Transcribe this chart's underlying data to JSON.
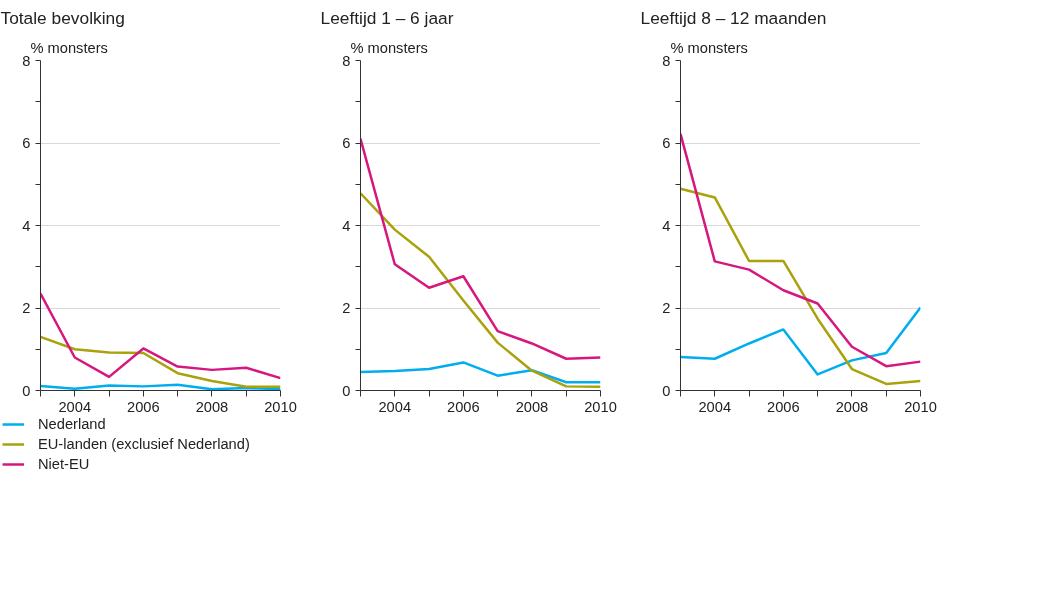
{
  "chart_data": [
    {
      "type": "line",
      "title": "Totale bevolking",
      "ylabel": "% monsters",
      "x": [
        2003,
        2004,
        2005,
        2006,
        2007,
        2008,
        2009,
        2010
      ],
      "xlim": [
        2003,
        2010
      ],
      "xticks": [
        {
          "value": 2003,
          "label": null
        },
        2004,
        {
          "value": 2005,
          "label": null
        },
        2006,
        {
          "value": 2007,
          "label": null
        },
        2008,
        {
          "value": 2009,
          "label": null
        },
        2010
      ],
      "ylim": [
        0,
        8
      ],
      "yticks": [
        0,
        {
          "value": 1,
          "label": null
        },
        2,
        {
          "value": 3,
          "label": null
        },
        4,
        {
          "value": 5,
          "label": null
        },
        6,
        {
          "value": 7,
          "label": null
        },
        8
      ],
      "grid": "y",
      "legend": "bottom",
      "series": [
        {
          "name": "Nederland",
          "color": "#00aeef",
          "values": [
            0.11,
            0.04,
            0.12,
            0.1,
            0.14,
            0.03,
            0.06,
            0.03
          ]
        },
        {
          "name": "EU-landen (exclusief Nederland)",
          "color": "#a9a20c",
          "values": [
            1.3,
            1.0,
            0.92,
            0.91,
            0.42,
            0.23,
            0.09,
            0.09
          ]
        },
        {
          "name": "Niet-EU",
          "color": "#d6177f",
          "values": [
            2.35,
            0.8,
            0.33,
            1.02,
            0.58,
            0.5,
            0.55,
            0.3
          ]
        }
      ]
    },
    {
      "type": "line",
      "title": "Leeftijd 1 – 6 jaar",
      "ylabel": "% monsters",
      "x": [
        2003,
        2004,
        2005,
        2006,
        2007,
        2008,
        2009,
        2010
      ],
      "xlim": [
        2003,
        2010
      ],
      "xticks": [
        {
          "value": 2003,
          "label": null
        },
        2004,
        {
          "value": 2005,
          "label": null
        },
        2006,
        {
          "value": 2007,
          "label": null
        },
        2008,
        {
          "value": 2009,
          "label": null
        },
        2010
      ],
      "ylim": [
        0,
        8
      ],
      "yticks": [
        0,
        {
          "value": 1,
          "label": null
        },
        2,
        {
          "value": 3,
          "label": null
        },
        4,
        {
          "value": 5,
          "label": null
        },
        6,
        {
          "value": 7,
          "label": null
        },
        8
      ],
      "grid": "y",
      "series": [
        {
          "color": "#00aeef",
          "values": [
            0.45,
            0.47,
            0.52,
            0.68,
            0.36,
            0.49,
            0.2,
            0.2
          ]
        },
        {
          "color": "#a9a20c",
          "values": [
            4.78,
            3.9,
            3.24,
            2.18,
            1.16,
            0.48,
            0.1,
            0.09
          ]
        },
        {
          "color": "#d6177f",
          "values": [
            6.1,
            3.06,
            2.49,
            2.77,
            1.44,
            1.14,
            0.77,
            0.8
          ]
        }
      ]
    },
    {
      "type": "line",
      "title": "Leeftijd 8 – 12 maanden",
      "ylabel": "% monsters",
      "x": [
        2003,
        2004,
        2005,
        2006,
        2007,
        2008,
        2009,
        2010
      ],
      "xlim": [
        2003,
        2010
      ],
      "xticks": [
        {
          "value": 2003,
          "label": null
        },
        2004,
        {
          "value": 2005,
          "label": null
        },
        2006,
        {
          "value": 2007,
          "label": null
        },
        2008,
        {
          "value": 2009,
          "label": null
        },
        2010
      ],
      "ylim": [
        0,
        8
      ],
      "yticks": [
        0,
        {
          "value": 1,
          "label": null
        },
        2,
        {
          "value": 3,
          "label": null
        },
        4,
        {
          "value": 5,
          "label": null
        },
        6,
        {
          "value": 7,
          "label": null
        },
        8
      ],
      "grid": "y",
      "series": [
        {
          "color": "#00aeef",
          "values": [
            0.81,
            0.77,
            1.14,
            1.48,
            0.39,
            0.73,
            0.91,
            2.01
          ]
        },
        {
          "color": "#a9a20c",
          "values": [
            4.89,
            4.68,
            3.14,
            3.14,
            1.74,
            0.52,
            0.16,
            0.23
          ]
        },
        {
          "color": "#d6177f",
          "values": [
            6.22,
            3.13,
            2.93,
            2.43,
            2.11,
            1.06,
            0.59,
            0.7
          ]
        }
      ]
    }
  ]
}
